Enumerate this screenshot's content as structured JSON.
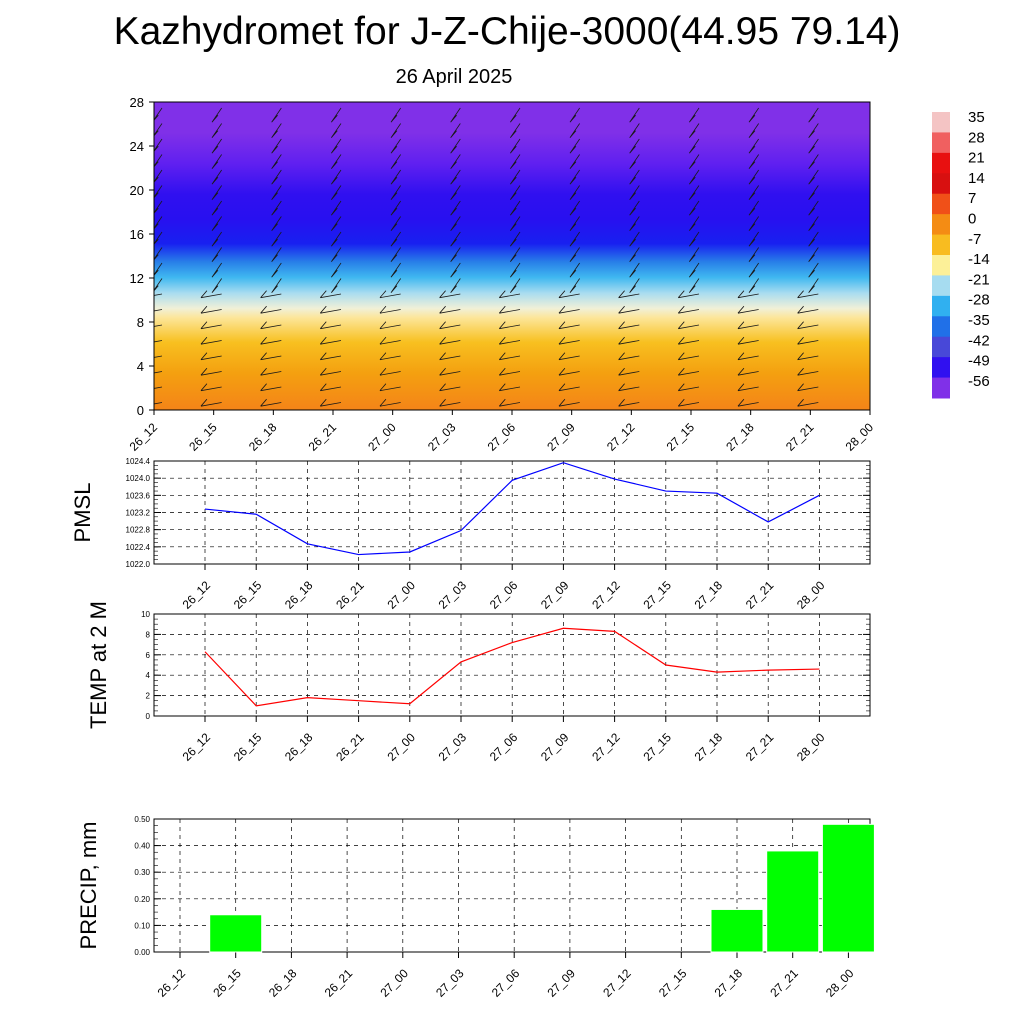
{
  "header": {
    "title": "Kazhydromet for J-Z-Chije-3000(44.95 79.14)",
    "date": "26 April 2025"
  },
  "chart_data": [
    {
      "type": "heatmap",
      "title": "",
      "xlabel": "",
      "ylabel": "",
      "x": [
        "26_12",
        "26_15",
        "26_18",
        "26_21",
        "27_00",
        "27_03",
        "27_06",
        "27_09",
        "27_12",
        "27_15",
        "27_18",
        "27_21",
        "28_00"
      ],
      "y_ticks": [
        0,
        4,
        8,
        12,
        16,
        20,
        24,
        28
      ],
      "ylim": [
        0,
        28
      ],
      "colorbar": {
        "labels": [
          35,
          28,
          21,
          14,
          7,
          0,
          -7,
          -14,
          -21,
          -28,
          -35,
          -42,
          -49,
          -56
        ],
        "colors": [
          "#f4c4c4",
          "#f06060",
          "#e81010",
          "#d81010",
          "#f05018",
          "#f48c14",
          "#f8bc20",
          "#fcf098",
          "#a6dcf0",
          "#30b0f0",
          "#2070e8",
          "#4848d8",
          "#3010f0",
          "#8030e8"
        ]
      },
      "grid": false,
      "wind_barbs": true
    },
    {
      "type": "line",
      "ylabel": "PMSL",
      "x": [
        "26_12",
        "26_15",
        "26_18",
        "26_21",
        "27_00",
        "27_03",
        "27_06",
        "27_09",
        "27_12",
        "27_15",
        "27_18",
        "27_21",
        "28_00"
      ],
      "y_ticks": [
        "1022.0",
        "1022.4",
        "1022.8",
        "1023.2",
        "1023.6",
        "1024.0",
        "1024.4"
      ],
      "ylim": [
        1022.0,
        1024.4
      ],
      "series": [
        {
          "color": "#0000ff",
          "values": [
            1023.28,
            1023.16,
            1022.47,
            1022.22,
            1022.28,
            1022.78,
            1023.95,
            1024.36,
            1023.98,
            1023.7,
            1023.65,
            1022.98,
            1023.6
          ]
        }
      ],
      "grid": true
    },
    {
      "type": "line",
      "ylabel": "TEMP at 2 M",
      "x": [
        "26_12",
        "26_15",
        "26_18",
        "26_21",
        "27_00",
        "27_03",
        "27_06",
        "27_09",
        "27_12",
        "27_15",
        "27_18",
        "27_21",
        "28_00"
      ],
      "y_ticks": [
        0,
        2,
        4,
        6,
        8,
        10
      ],
      "ylim": [
        0,
        10
      ],
      "series": [
        {
          "color": "#ff0000",
          "values": [
            6.3,
            1.0,
            1.8,
            1.5,
            1.2,
            5.3,
            7.2,
            8.6,
            8.3,
            5.0,
            4.3,
            4.5,
            4.6
          ]
        }
      ],
      "grid": true
    },
    {
      "type": "bar",
      "ylabel": "PRECIP, mm",
      "categories": [
        "26_12",
        "26_15",
        "26_18",
        "26_21",
        "27_00",
        "27_03",
        "27_06",
        "27_09",
        "27_12",
        "27_15",
        "27_18",
        "27_21",
        "28_00"
      ],
      "values": [
        0,
        0.14,
        0,
        0,
        0,
        0,
        0,
        0,
        0,
        0,
        0.16,
        0.38,
        0.48
      ],
      "y_ticks": [
        "0.00",
        "0.10",
        "0.20",
        "0.30",
        "0.40",
        "0.50"
      ],
      "ylim": [
        0,
        0.5
      ],
      "bar_color": "#00ff00",
      "grid": true
    }
  ]
}
